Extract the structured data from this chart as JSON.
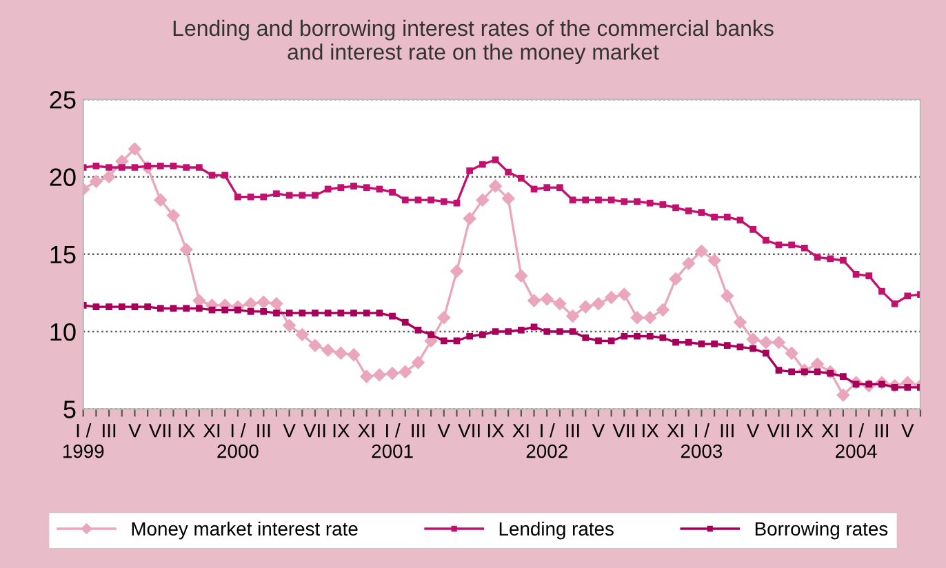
{
  "chart_data": {
    "type": "line",
    "title": "Lending and borrowing interest rates of the commercial banks\nand interest rate on the money market",
    "categories": [
      "I /\n1999",
      null,
      "III",
      null,
      "V",
      null,
      "VII",
      null,
      "IX",
      null,
      "XI",
      null,
      "I /\n2000",
      null,
      "III",
      null,
      "V",
      null,
      "VII",
      null,
      "IX",
      null,
      "XI",
      null,
      "I /\n2001",
      null,
      "III",
      null,
      "V",
      null,
      "VII",
      null,
      "IX",
      null,
      "XI",
      null,
      "I /\n2002",
      null,
      "III",
      null,
      "V",
      null,
      "VII",
      null,
      "IX",
      null,
      "XI",
      null,
      "I /\n2003",
      null,
      "III",
      null,
      "V",
      null,
      "VII",
      null,
      "IX",
      null,
      "XI",
      null,
      "I /\n2004",
      null,
      "III",
      null,
      "V",
      null
    ],
    "series": [
      {
        "name": "Money market interest rate",
        "color": "#eaa6bd",
        "marker": "diamond",
        "values": [
          19.2,
          19.7,
          20.0,
          21.0,
          21.8,
          20.6,
          18.5,
          17.5,
          15.3,
          12.0,
          11.7,
          11.7,
          11.6,
          11.8,
          11.9,
          11.8,
          10.4,
          9.8,
          9.1,
          8.8,
          8.6,
          8.5,
          7.1,
          7.2,
          7.3,
          7.4,
          8.0,
          9.4,
          10.9,
          13.9,
          17.3,
          18.5,
          19.4,
          18.6,
          13.6,
          12.0,
          12.1,
          11.8,
          11.0,
          11.6,
          11.8,
          12.2,
          12.4,
          10.9,
          10.9,
          11.4,
          13.4,
          14.4,
          15.2,
          14.6,
          12.3,
          10.6,
          9.5,
          9.3,
          9.3,
          8.6,
          7.5,
          7.9,
          7.4,
          5.9,
          6.7,
          6.5,
          6.7,
          6.5,
          6.7,
          6.5
        ]
      },
      {
        "name": "Lending rates",
        "color": "#c2106e",
        "marker": "square",
        "values": [
          20.6,
          20.7,
          20.6,
          20.6,
          20.6,
          20.7,
          20.7,
          20.7,
          20.6,
          20.6,
          20.1,
          20.1,
          18.7,
          18.7,
          18.7,
          18.9,
          18.8,
          18.8,
          18.8,
          19.2,
          19.3,
          19.4,
          19.3,
          19.2,
          19.0,
          18.5,
          18.5,
          18.5,
          18.4,
          18.3,
          20.4,
          20.8,
          21.1,
          20.3,
          19.9,
          19.2,
          19.3,
          19.3,
          18.5,
          18.5,
          18.5,
          18.5,
          18.4,
          18.4,
          18.3,
          18.2,
          18.0,
          17.8,
          17.7,
          17.4,
          17.4,
          17.2,
          16.6,
          15.9,
          15.6,
          15.6,
          15.4,
          14.8,
          14.7,
          14.6,
          13.7,
          13.6,
          12.6,
          11.8,
          12.3,
          12.4
        ]
      },
      {
        "name": "Borrowing rates",
        "color": "#a8005a",
        "marker": "square",
        "values": [
          11.7,
          11.6,
          11.6,
          11.6,
          11.6,
          11.6,
          11.5,
          11.5,
          11.5,
          11.5,
          11.4,
          11.4,
          11.4,
          11.3,
          11.3,
          11.2,
          11.2,
          11.2,
          11.2,
          11.2,
          11.2,
          11.2,
          11.2,
          11.2,
          11.0,
          10.6,
          10.1,
          9.8,
          9.4,
          9.4,
          9.7,
          9.8,
          10.0,
          10.0,
          10.1,
          10.3,
          10.0,
          10.0,
          10.0,
          9.6,
          9.4,
          9.4,
          9.7,
          9.7,
          9.7,
          9.6,
          9.3,
          9.3,
          9.2,
          9.2,
          9.1,
          9.0,
          8.9,
          8.6,
          7.5,
          7.4,
          7.4,
          7.4,
          7.3,
          7.1,
          6.6,
          6.6,
          6.6,
          6.4,
          6.4,
          6.4
        ]
      }
    ],
    "ylim": [
      5,
      25
    ],
    "yticks": [
      5,
      10,
      15,
      20,
      25
    ],
    "grid": "y",
    "legend": "bottom"
  }
}
